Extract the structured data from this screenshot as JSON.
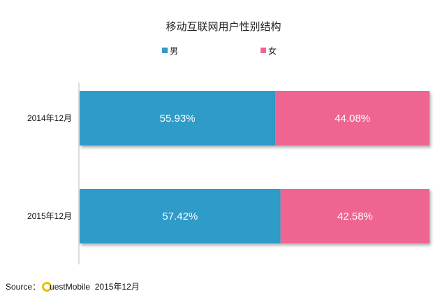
{
  "chart_data": {
    "type": "bar",
    "orientation": "horizontal",
    "stacked": true,
    "title": "移动互联网用户性别结构",
    "categories": [
      "2014年12月",
      "2015年12月"
    ],
    "series": [
      {
        "name": "男",
        "values": [
          55.93,
          57.42
        ],
        "labels": [
          "55.93%",
          "57.42%"
        ],
        "color": "#2e9bc9"
      },
      {
        "name": "女",
        "values": [
          44.08,
          42.58
        ],
        "labels": [
          "44.08%",
          "42.58%"
        ],
        "color": "#ef6592"
      }
    ],
    "xlim": [
      0,
      100
    ],
    "grid": false,
    "legend": "top-center"
  },
  "source": {
    "prefix": "Source：",
    "brand": "uestMobile",
    "date": "2015年12月"
  },
  "colors": {
    "logo_ring": "#e8c100"
  }
}
